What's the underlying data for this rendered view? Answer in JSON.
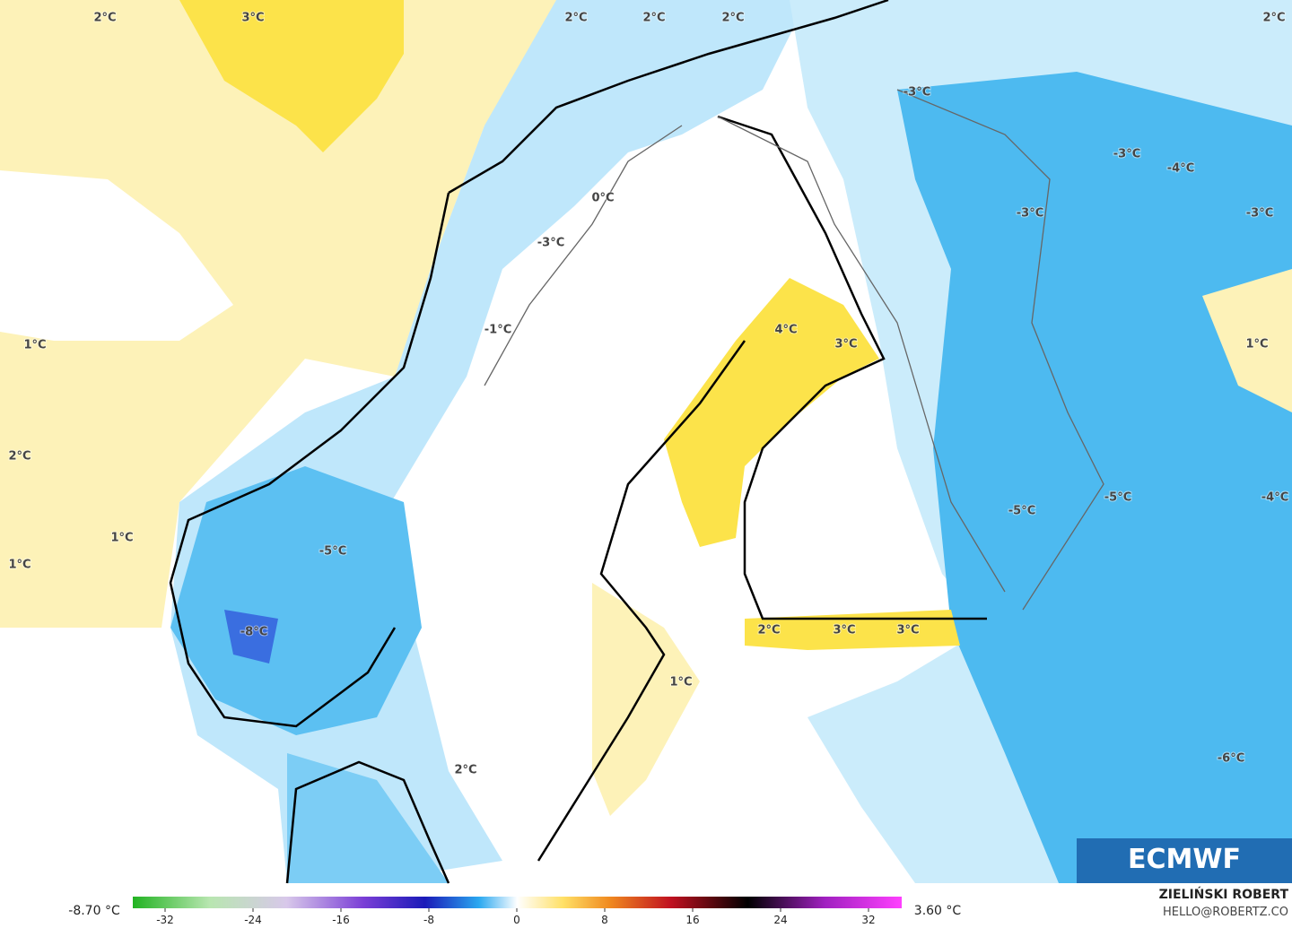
{
  "map_labels": [
    "2°C",
    "3°C",
    "2°C",
    "2°C",
    "2°C",
    "2°C",
    "-3°C",
    "0°C",
    "-3°C",
    "-3°C",
    "-4°C",
    "-3°C",
    "-3°C",
    "1°C",
    "-1°C",
    "4°C",
    "3°C",
    "1°C",
    "2°C",
    "-5°C",
    "-5°C",
    "-4°C",
    "1°C",
    "-5°C",
    "1°C",
    "-8°C",
    "2°C",
    "3°C",
    "3°C",
    "1°C",
    "-6°C",
    "2°C"
  ],
  "colorbar": {
    "ticks": [
      -32,
      -24,
      -16,
      -8,
      0,
      8,
      16,
      24,
      32
    ],
    "min_label": "-8.70 °C",
    "max_label": "3.60 °C"
  },
  "credit": {
    "name": "ZIELIŃSKI ROBERT",
    "email": "HELLO@ROBERTZ.CO"
  },
  "logo": "ECMWF"
}
